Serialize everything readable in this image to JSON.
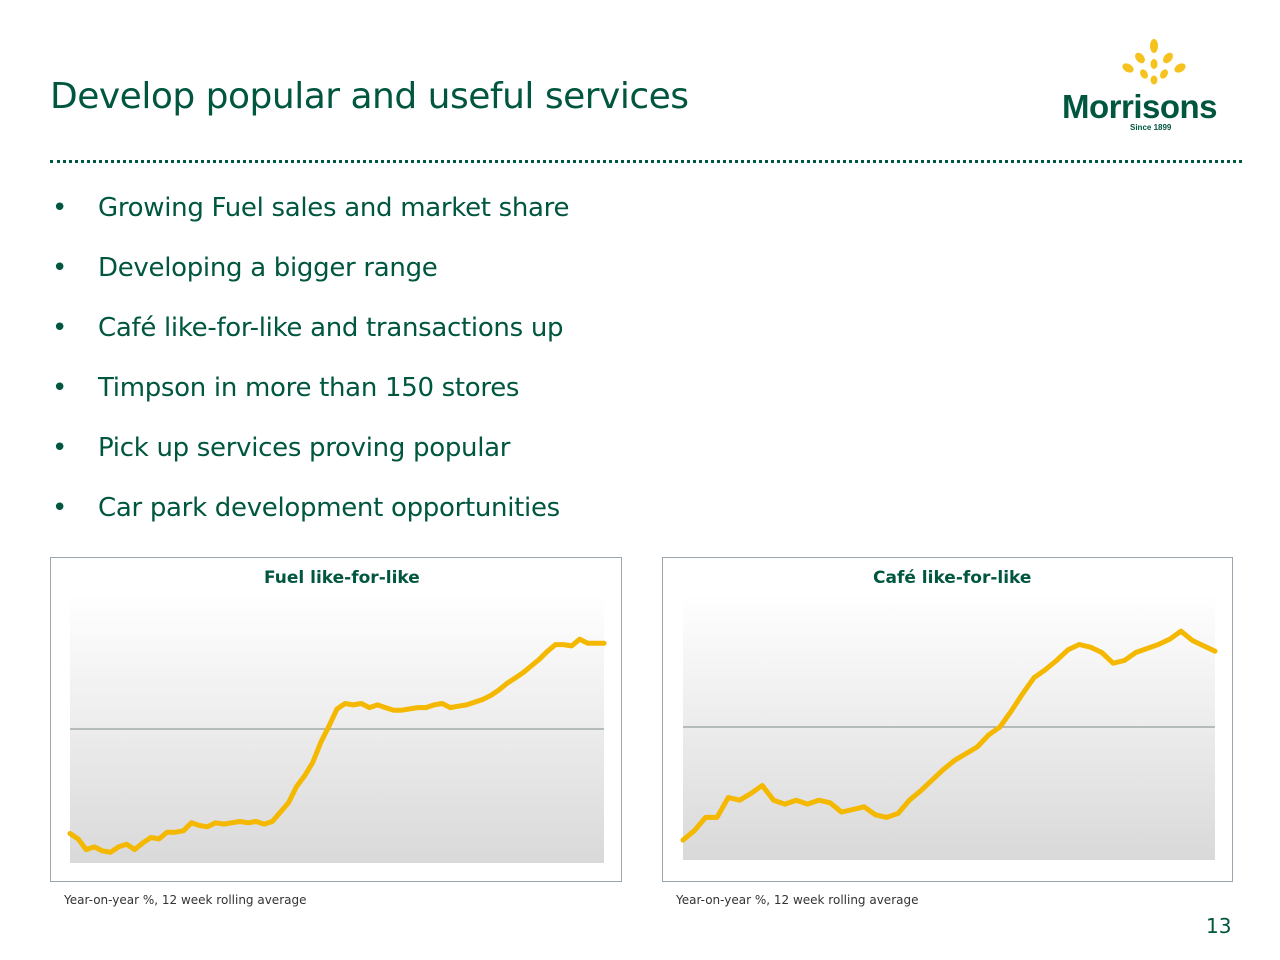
{
  "title": "Develop popular and useful services",
  "logo": {
    "word": "Morrisons",
    "since": "Since 1899",
    "icon": "wheat-sheaf-icon"
  },
  "bullets": [
    "Growing Fuel sales and market share",
    "Developing a bigger range",
    "Café like-for-like and transactions up",
    "Timpson in more than 150 stores",
    "Pick up services proving popular",
    "Car park development opportunities"
  ],
  "colors": {
    "brand_green": "#00563f",
    "line_yellow": "#f5b800",
    "logo_yellow": "#f6c21d"
  },
  "charts": [
    {
      "title": "Fuel like-for-like",
      "footnote": "Year-on-year %, 12 week rolling average"
    },
    {
      "title": "Café like-for-like",
      "footnote": "Year-on-year %, 12 week rolling average"
    }
  ],
  "page_number": "13",
  "chart_data": [
    {
      "type": "line",
      "title": "Fuel like-for-like",
      "xlabel": "",
      "ylabel": "",
      "ylim": [
        -1,
        1
      ],
      "grid": false,
      "zero_line": true,
      "series": [
        {
          "values": [
            -0.78,
            -0.82,
            -0.9,
            -0.88,
            -0.91,
            -0.92,
            -0.88,
            -0.86,
            -0.9,
            -0.85,
            -0.81,
            -0.82,
            -0.77,
            -0.77,
            -0.76,
            -0.7,
            -0.72,
            -0.73,
            -0.7,
            -0.71,
            -0.7,
            -0.69,
            -0.7,
            -0.69,
            -0.71,
            -0.69,
            -0.62,
            -0.55,
            -0.43,
            -0.35,
            -0.25,
            -0.1,
            0.02,
            0.15,
            0.19,
            0.18,
            0.19,
            0.16,
            0.18,
            0.16,
            0.14,
            0.14,
            0.15,
            0.16,
            0.16,
            0.18,
            0.19,
            0.16,
            0.17,
            0.18,
            0.2,
            0.22,
            0.25,
            0.29,
            0.34,
            0.38,
            0.42,
            0.47,
            0.52,
            0.58,
            0.63,
            0.63,
            0.62,
            0.67,
            0.64,
            0.64,
            0.64
          ]
        }
      ]
    },
    {
      "type": "line",
      "title": "Café like-for-like",
      "xlabel": "",
      "ylabel": "",
      "ylim": [
        -1,
        1
      ],
      "grid": false,
      "zero_line": true,
      "series": [
        {
          "values": [
            -0.85,
            -0.78,
            -0.68,
            -0.68,
            -0.53,
            -0.55,
            -0.5,
            -0.44,
            -0.55,
            -0.58,
            -0.55,
            -0.58,
            -0.55,
            -0.57,
            -0.64,
            -0.62,
            -0.6,
            -0.66,
            -0.68,
            -0.65,
            -0.55,
            -0.48,
            -0.4,
            -0.32,
            -0.25,
            -0.2,
            -0.15,
            -0.06,
            0.0,
            0.12,
            0.25,
            0.37,
            0.43,
            0.5,
            0.58,
            0.62,
            0.6,
            0.56,
            0.48,
            0.5,
            0.56,
            0.59,
            0.62,
            0.66,
            0.72,
            0.65,
            0.61,
            0.57
          ]
        }
      ]
    }
  ]
}
